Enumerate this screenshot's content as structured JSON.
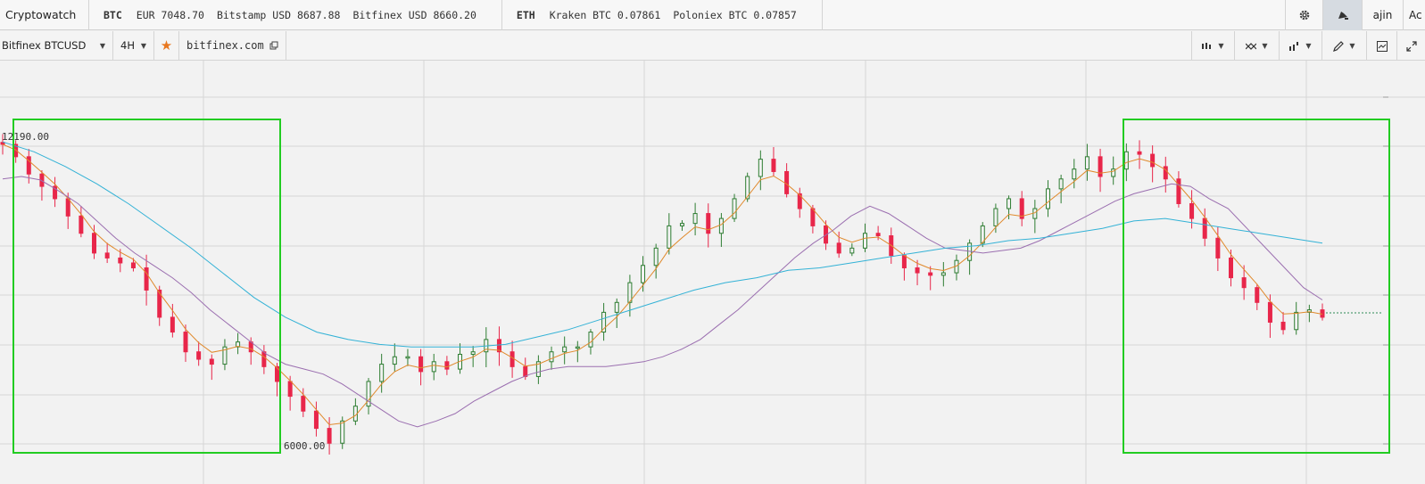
{
  "app": {
    "brand": "Cryptowatch"
  },
  "ticker": {
    "btc": {
      "symbol": "BTC",
      "quotes": [
        "EUR 7048.70",
        "Bitstamp USD 8687.88",
        "Bitfinex USD 8660.20"
      ]
    },
    "eth": {
      "symbol": "ETH",
      "quotes": [
        "Kraken BTC 0.07861",
        "Poloniex BTC 0.07857"
      ]
    }
  },
  "header_right": {
    "user": "ajin",
    "cut_label": "Ac"
  },
  "toolbar": {
    "market": "Bitfinex BTCUSD",
    "interval": "4H",
    "exchange_link": "bitfinex.com",
    "icons": [
      "candles-icon",
      "indicators-icon",
      "overlay-icon",
      "draw-icon",
      "snapshot-icon",
      "fullscreen-icon"
    ]
  },
  "chart": {
    "high_label": "12190.00",
    "low_label": "6000.00",
    "colors": {
      "up": "#2e7d32",
      "down": "#e8264a",
      "ema_short": "#e0892b",
      "ma_mid": "#9b6fb0",
      "ma_long": "#33b2d6",
      "highlight": "#22cc22",
      "grid": "#d6d6d6"
    },
    "highlight_boxes": 2
  },
  "chart_data": {
    "type": "line",
    "series": [
      {
        "values": [
          12100,
          11850,
          11500,
          11250,
          11000,
          10650,
          10300,
          9900,
          9800,
          9700,
          9600,
          9150,
          8600,
          8300,
          7900,
          7750,
          7650,
          8000,
          8100,
          7900,
          7600,
          7300,
          7000,
          6700,
          6350,
          6050,
          6500,
          6800,
          7300,
          7650,
          7800,
          7800,
          7500,
          7700,
          7550,
          7850,
          7900,
          8150,
          7900,
          7600,
          7400,
          7700,
          7900,
          8000,
          8000,
          8300,
          8700,
          8900,
          9300,
          9650,
          10000,
          10450,
          10500,
          10700,
          10300,
          10600,
          11000,
          11450,
          11800,
          11550,
          11100,
          10800,
          10450,
          10100,
          9900,
          10000,
          10300,
          10250,
          9850,
          9600,
          9500,
          9450,
          9500,
          9750,
          10100,
          10450,
          10800,
          11000,
          10600,
          10800,
          11200,
          11400,
          11600,
          11850,
          11450,
          11600,
          11950,
          11900,
          11650,
          11400,
          10900,
          10600,
          10200,
          9800,
          9400,
          9200,
          8900,
          8500,
          8350,
          8700,
          8750,
          8600
        ],
        "color": "#e8264a"
      },
      {
        "values": [
          11400,
          11450,
          11380,
          11150,
          10900,
          10550,
          10200,
          9900,
          9650,
          9400,
          9100,
          8750,
          8450,
          8150,
          7850,
          7650,
          7550,
          7450,
          7250,
          7000,
          6750,
          6500,
          6380,
          6500,
          6650,
          6900,
          7100,
          7300,
          7450,
          7550,
          7600,
          7600,
          7600,
          7650,
          7700,
          7800,
          7950,
          8150,
          8450,
          8750,
          9100,
          9450,
          9800,
          10100,
          10350,
          10650,
          10850,
          10700,
          10450,
          10200,
          10000,
          9950,
          9900,
          9950,
          10000,
          10150,
          10350,
          10550,
          10750,
          10950,
          11100,
          11200,
          11300,
          11250,
          11000,
          10800,
          10400,
          10000,
          9600,
          9200,
          8950
        ]
      },
      {
        "values": [
          12150,
          11950,
          11650,
          11300,
          10900,
          10450,
          10000,
          9500,
          9000,
          8600,
          8300,
          8150,
          8050,
          8000,
          8000,
          8000,
          8050,
          8200,
          8350,
          8550,
          8750,
          8950,
          9150,
          9300,
          9400,
          9550,
          9600,
          9700,
          9800,
          9900,
          10000,
          10050,
          10150,
          10200,
          10300,
          10400,
          10550,
          10600,
          10500,
          10400,
          10300,
          10200,
          10100
        ]
      }
    ],
    "ylim": [
      6000,
      12190
    ],
    "grid": true
  }
}
